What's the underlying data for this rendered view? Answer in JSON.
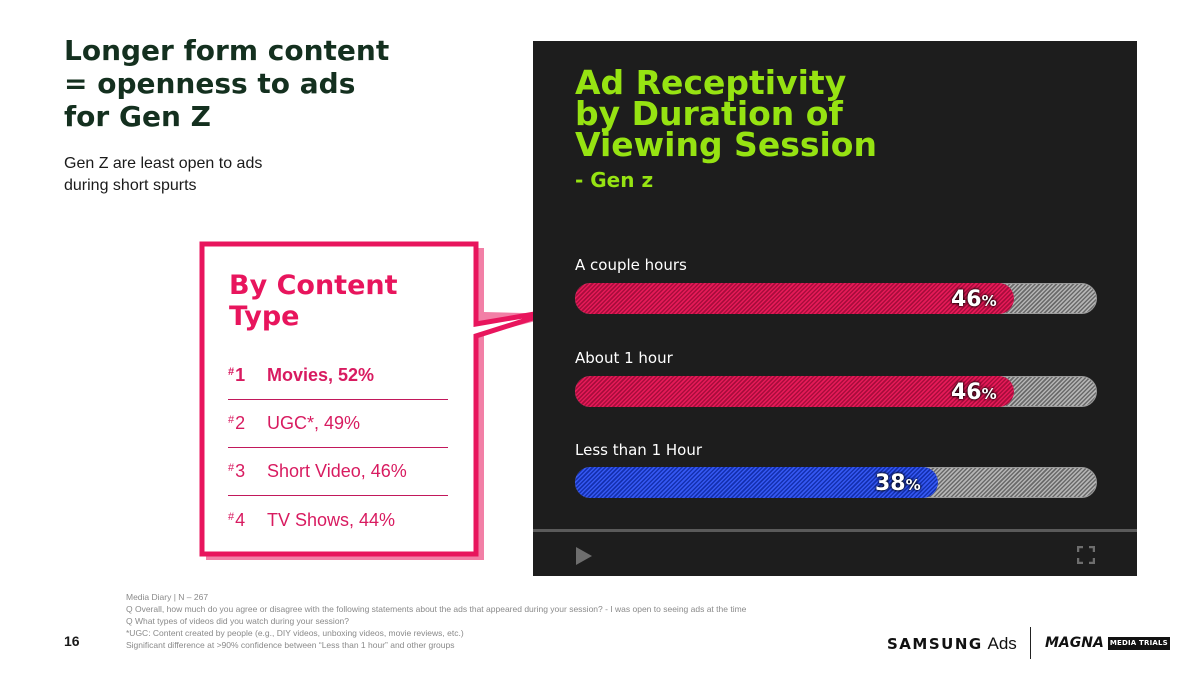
{
  "slide": {
    "title": "Longer form content\n= openness to ads\nfor Gen Z",
    "subtitle": "Gen Z are least open to ads\nduring short spurts",
    "page_number": "16"
  },
  "callout": {
    "title": "By Content\nType",
    "items": [
      {
        "rank": "1",
        "label": "Movies, 52%"
      },
      {
        "rank": "2",
        "label": "UGC*, 49%"
      },
      {
        "rank": "3",
        "label": "Short Video, 46%"
      },
      {
        "rank": "4",
        "label": "TV Shows, 44%"
      }
    ],
    "accent_color": "#e8155d"
  },
  "chart_data": {
    "type": "bar",
    "orientation": "horizontal",
    "title": "Ad Receptivity\nby Duration of\nViewing Session",
    "subtitle": "- Gen z",
    "categories": [
      "A couple hours",
      "About 1 hour",
      "Less than 1 Hour"
    ],
    "values": [
      46,
      46,
      38
    ],
    "value_suffix": "%",
    "colors": [
      "#c8124a",
      "#c8124a",
      "#1d3dd6"
    ],
    "xlim": [
      0,
      100
    ],
    "grid": false,
    "legend": "none"
  },
  "player": {
    "play_icon": "play-icon",
    "fullscreen_icon": "fullscreen-icon"
  },
  "footnotes": [
    "Media Diary | N – 267",
    "Q Overall, how much do you agree or disagree with the following statements about the ads that appeared during your session? - I was open to seeing ads at the time",
    "Q What types of videos did you watch during your session?",
    "*UGC: Content created by people (e.g., DIY videos, unboxing videos, movie reviews, etc.)",
    "Significant difference at >90% confidence between “Less than 1 hour” and other groups"
  ],
  "logos": {
    "samsung_brand": "SAMSUNG",
    "samsung_ads": "Ads",
    "magna": "MAGNA",
    "magna_badge": "MEDIA TRIALS"
  },
  "colors": {
    "title_green": "#14301f",
    "lime": "#96e312",
    "panel_bg": "#1d1d1d"
  }
}
